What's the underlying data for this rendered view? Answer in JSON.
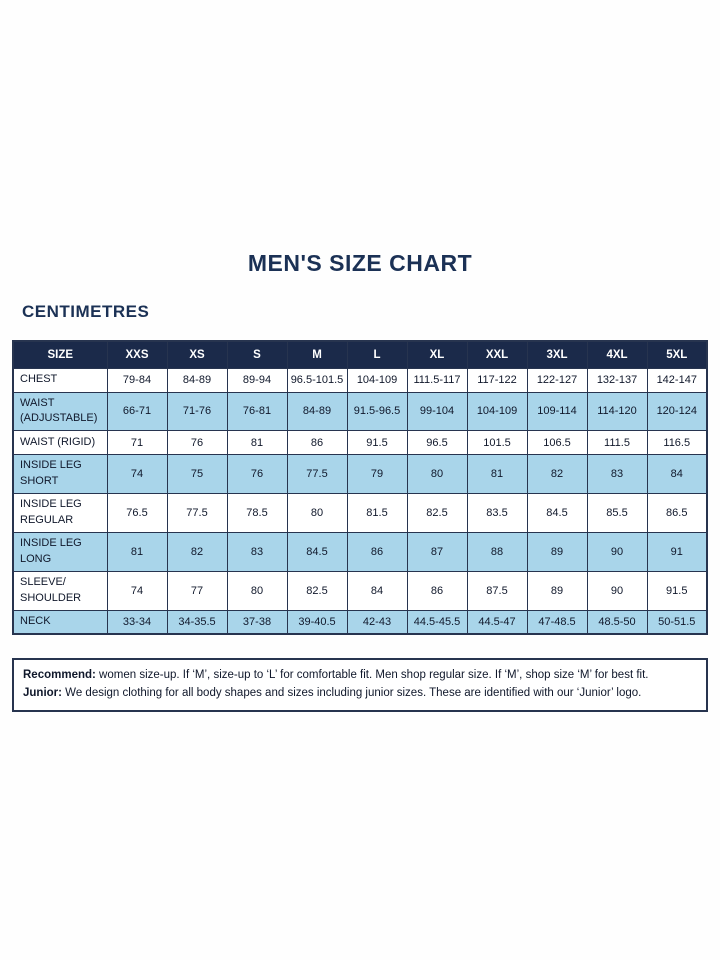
{
  "page": {
    "title": "MEN'S SIZE CHART",
    "unit_heading": "CENTIMETRES"
  },
  "chart_data": {
    "type": "table",
    "columns": [
      "SIZE",
      "XXS",
      "XS",
      "S",
      "M",
      "L",
      "XL",
      "XXL",
      "3XL",
      "4XL",
      "5XL"
    ],
    "rows": [
      {
        "label": "CHEST",
        "values": [
          "79-84",
          "84-89",
          "89-94",
          "96.5-101.5",
          "104-109",
          "111.5-117",
          "117-122",
          "122-127",
          "132-137",
          "142-147"
        ]
      },
      {
        "label": "WAIST (ADJUSTABLE)",
        "values": [
          "66-71",
          "71-76",
          "76-81",
          "84-89",
          "91.5-96.5",
          "99-104",
          "104-109",
          "109-114",
          "114-120",
          "120-124"
        ]
      },
      {
        "label": "WAIST (RIGID)",
        "values": [
          "71",
          "76",
          "81",
          "86",
          "91.5",
          "96.5",
          "101.5",
          "106.5",
          "111.5",
          "116.5"
        ]
      },
      {
        "label": "INSIDE LEG SHORT",
        "values": [
          "74",
          "75",
          "76",
          "77.5",
          "79",
          "80",
          "81",
          "82",
          "83",
          "84"
        ]
      },
      {
        "label": "INSIDE LEG REGULAR",
        "values": [
          "76.5",
          "77.5",
          "78.5",
          "80",
          "81.5",
          "82.5",
          "83.5",
          "84.5",
          "85.5",
          "86.5"
        ]
      },
      {
        "label": "INSIDE LEG LONG",
        "values": [
          "81",
          "82",
          "83",
          "84.5",
          "86",
          "87",
          "88",
          "89",
          "90",
          "91"
        ]
      },
      {
        "label": "SLEEVE/ SHOULDER",
        "values": [
          "74",
          "77",
          "80",
          "82.5",
          "84",
          "86",
          "87.5",
          "89",
          "90",
          "91.5"
        ]
      },
      {
        "label": "NECK",
        "values": [
          "33-34",
          "34-35.5",
          "37-38",
          "39-40.5",
          "42-43",
          "44.5-45.5",
          "44.5-47",
          "47-48.5",
          "48.5-50",
          "50-51.5"
        ]
      }
    ]
  },
  "footer": {
    "recommend_label": "Recommend:",
    "recommend_text": " women size-up. If ‘M’, size-up to ‘L’ for comfortable fit. Men shop regular size. If ‘M’, shop size ‘M’ for best fit.",
    "junior_label": "Junior:",
    "junior_text": " We design clothing for all body shapes and sizes including junior sizes. These are identified with our ‘Junior’ logo."
  },
  "colors": {
    "navy_header": "#1b2a4a",
    "navy_text": "#1b3155",
    "light_blue": "#a9d5ea",
    "border": "#27344f",
    "header_text": "#ffffff",
    "cell_text": "#10182b"
  }
}
